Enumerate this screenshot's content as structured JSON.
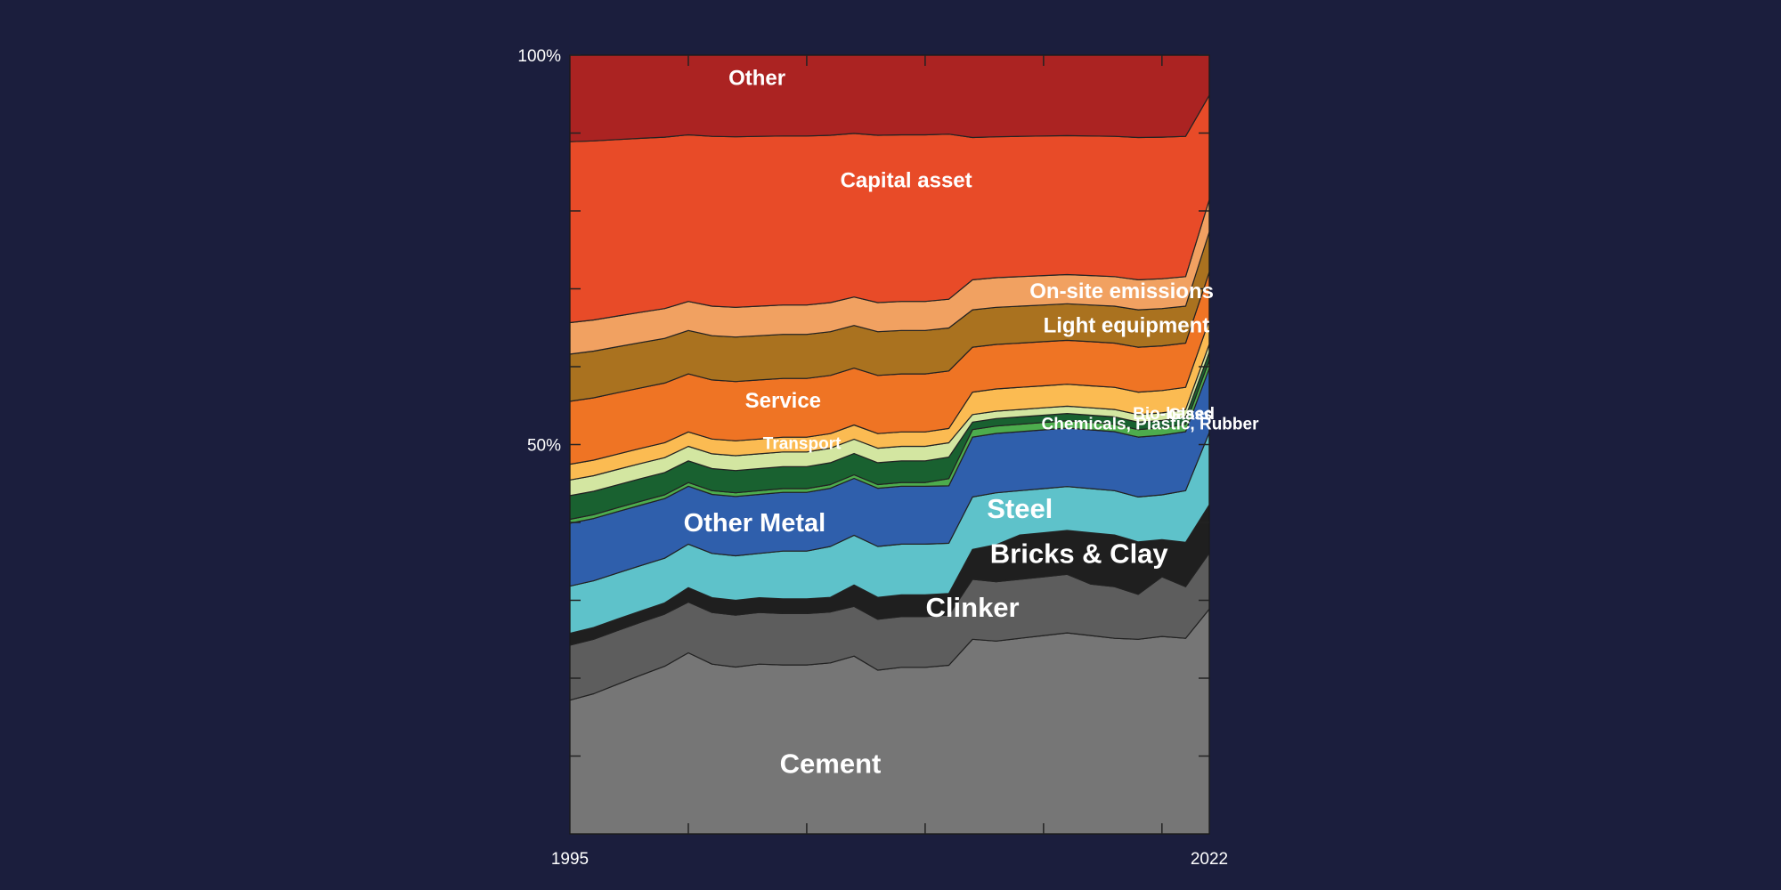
{
  "chart_data": {
    "type": "area",
    "stacked": true,
    "normalized": true,
    "x": [
      1995,
      1996,
      1997,
      1998,
      1999,
      2000,
      2001,
      2002,
      2003,
      2004,
      2005,
      2006,
      2007,
      2008,
      2009,
      2010,
      2011,
      2012,
      2013,
      2014,
      2015,
      2016,
      2017,
      2018,
      2019,
      2020,
      2021,
      2022
    ],
    "x_tick_labels": [
      {
        "value": 1995,
        "label": "1995"
      },
      {
        "value": 2022,
        "label": "2022"
      }
    ],
    "y_tick_labels": [
      {
        "value": 50,
        "label": "50%"
      },
      {
        "value": 100,
        "label": "100%"
      }
    ],
    "y_ticks": [
      10,
      20,
      30,
      40,
      50,
      60,
      70,
      80,
      90,
      100
    ],
    "ylim": [
      0,
      100
    ],
    "grid": false,
    "legend": "none",
    "series": [
      {
        "name": "Cement",
        "label": "Cement",
        "color": "#767676",
        "values": [
          17,
          18,
          19.5,
          21,
          22.5,
          25,
          23,
          22.5,
          23,
          23,
          23,
          23.5,
          25,
          22.5,
          23,
          23,
          23.5,
          26,
          26,
          26.5,
          27,
          27.5,
          27,
          26.5,
          26,
          26.5,
          26.5,
          28
        ]
      },
      {
        "name": "Clinker",
        "label": "Clinker",
        "color": "#5d5d5d",
        "values": [
          7,
          7,
          7,
          7,
          7,
          7,
          7,
          7,
          7,
          7,
          7,
          7,
          7,
          7,
          7,
          7,
          7,
          8,
          8,
          8,
          8,
          8,
          7,
          7,
          6,
          8,
          7,
          7
        ]
      },
      {
        "name": "Bricks & Clay",
        "label": "Bricks & Clay",
        "color": "#1f1f1f",
        "values": [
          1.5,
          1.5,
          1.5,
          1.5,
          1.5,
          2,
          2,
          2,
          2,
          2,
          2,
          2,
          3,
          3,
          3,
          3,
          3,
          4,
          5,
          6,
          6,
          6,
          7,
          7,
          7,
          5,
          6,
          6
        ]
      },
      {
        "name": "Steel",
        "label": "Steel",
        "color": "#5ec2ca",
        "values": [
          6,
          6,
          6,
          6,
          6,
          6,
          6,
          6,
          6,
          6.5,
          6.5,
          7,
          7,
          7,
          7,
          7,
          7,
          7,
          7,
          6,
          6,
          6,
          6,
          6,
          6,
          6,
          7,
          9
        ]
      },
      {
        "name": "Other Metal",
        "label": "Other Metal",
        "color": "#2f5fac",
        "values": [
          8,
          8,
          8,
          8,
          8,
          8,
          8,
          8,
          8,
          8,
          8,
          8,
          8,
          8,
          8,
          8,
          8,
          8,
          8,
          8,
          8,
          8,
          8,
          8,
          8,
          8,
          8,
          8
        ]
      },
      {
        "name": "Glass",
        "label": "Glass",
        "color": "#4dac4d",
        "values": [
          0.5,
          0.5,
          0.5,
          0.5,
          0.5,
          0.5,
          0.5,
          0.5,
          0.5,
          0.5,
          0.5,
          0.5,
          0.5,
          0.5,
          0.5,
          0.5,
          1,
          1,
          1,
          1,
          1,
          1,
          1,
          1,
          1,
          1,
          1,
          1
        ]
      },
      {
        "name": "Chemicals, Plastic, Rubber",
        "label": "Chemicals, Plastic, Rubber",
        "color": "#196130",
        "values": [
          3,
          3,
          3,
          3,
          3,
          3,
          3,
          3,
          3,
          3,
          3,
          3,
          3,
          3,
          3,
          3,
          3,
          1,
          1,
          1,
          1,
          1,
          1,
          1,
          1,
          1,
          1,
          1
        ]
      },
      {
        "name": "Bio-based",
        "label": "Bio-based",
        "color": "#d3e6a1",
        "values": [
          2,
          2,
          2,
          2,
          2,
          2,
          2,
          2,
          2,
          2,
          2,
          2,
          2,
          2,
          2,
          2,
          2,
          1,
          1,
          1,
          1,
          1,
          1,
          1,
          1,
          1,
          1,
          1
        ]
      },
      {
        "name": "Transport",
        "label": "Transport",
        "color": "#fbbb52",
        "values": [
          2,
          2,
          2,
          2,
          2,
          2,
          2,
          2,
          2,
          2,
          2,
          2,
          2,
          2,
          2,
          2,
          2,
          3,
          3,
          3,
          3,
          3,
          3,
          3,
          3,
          3,
          3,
          3
        ]
      },
      {
        "name": "Service",
        "label": "Service",
        "color": "#ef7424",
        "values": [
          8,
          8,
          8,
          8,
          8,
          8,
          8,
          8,
          8,
          8,
          8,
          8,
          8,
          8,
          8,
          8,
          8,
          6,
          6,
          6,
          6,
          6,
          6,
          6,
          6,
          6,
          6,
          6
        ]
      },
      {
        "name": "Light equipment",
        "label": "Light equipment",
        "color": "#aa721f",
        "values": [
          6,
          6,
          6,
          6,
          6,
          6,
          6,
          6,
          6,
          6,
          6,
          6,
          6,
          6,
          6,
          6,
          6,
          5,
          5,
          5,
          5,
          5,
          5,
          5,
          5,
          5,
          5,
          5
        ]
      },
      {
        "name": "On-site emissions",
        "label": "On-site emissions",
        "color": "#f1a161",
        "values": [
          4,
          4,
          4,
          4,
          4,
          4,
          4,
          4,
          4,
          4,
          4,
          4,
          4,
          4,
          4,
          4,
          4,
          4,
          4,
          4,
          4,
          4,
          4,
          4,
          4,
          4,
          4,
          4
        ]
      },
      {
        "name": "Capital asset",
        "label": "Capital asset",
        "color": "#e84b28",
        "values": [
          23,
          23,
          23,
          23,
          23,
          23,
          23,
          23,
          23,
          23,
          23,
          23,
          23,
          23,
          23,
          23,
          23,
          19,
          19,
          19,
          19,
          19,
          19,
          19,
          19,
          19,
          19,
          13
        ]
      },
      {
        "name": "Other",
        "label": "Other",
        "color": "#ab2322",
        "values": [
          11,
          11,
          11,
          11,
          11,
          11,
          11,
          11,
          11,
          11,
          11,
          11,
          11,
          11,
          11,
          11,
          11,
          11,
          11,
          11,
          11,
          11,
          11,
          11,
          11,
          11,
          11,
          5
        ]
      }
    ]
  }
}
